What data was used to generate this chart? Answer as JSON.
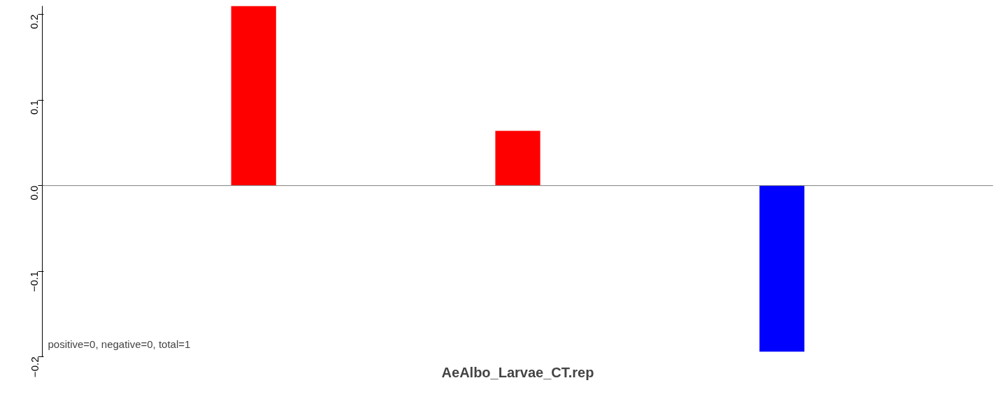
{
  "chart_data": {
    "type": "bar",
    "xlabel": "AeAlbo_Larvae_CT.rep",
    "categories": [
      null,
      null,
      null
    ],
    "values": [
      0.21,
      0.064,
      -0.194
    ],
    "colors": [
      "#ff0000",
      "#ff0000",
      "#0000ff"
    ],
    "ylim": [
      -0.2,
      0.21
    ],
    "yticks": [
      {
        "value": -0.2,
        "label": "−0.2"
      },
      {
        "value": -0.1,
        "label": "−0.1"
      },
      {
        "value": 0,
        "label": "0.0"
      },
      {
        "value": 0.1,
        "label": "0.1"
      },
      {
        "value": 0.2,
        "label": "0.2"
      }
    ],
    "ref_lines": [
      {
        "axis": "y",
        "value": 0,
        "color": "#808080"
      }
    ],
    "annotations": [
      "positive=0, negative=0, total=1"
    ],
    "tick_labels": "y",
    "grid": false
  }
}
